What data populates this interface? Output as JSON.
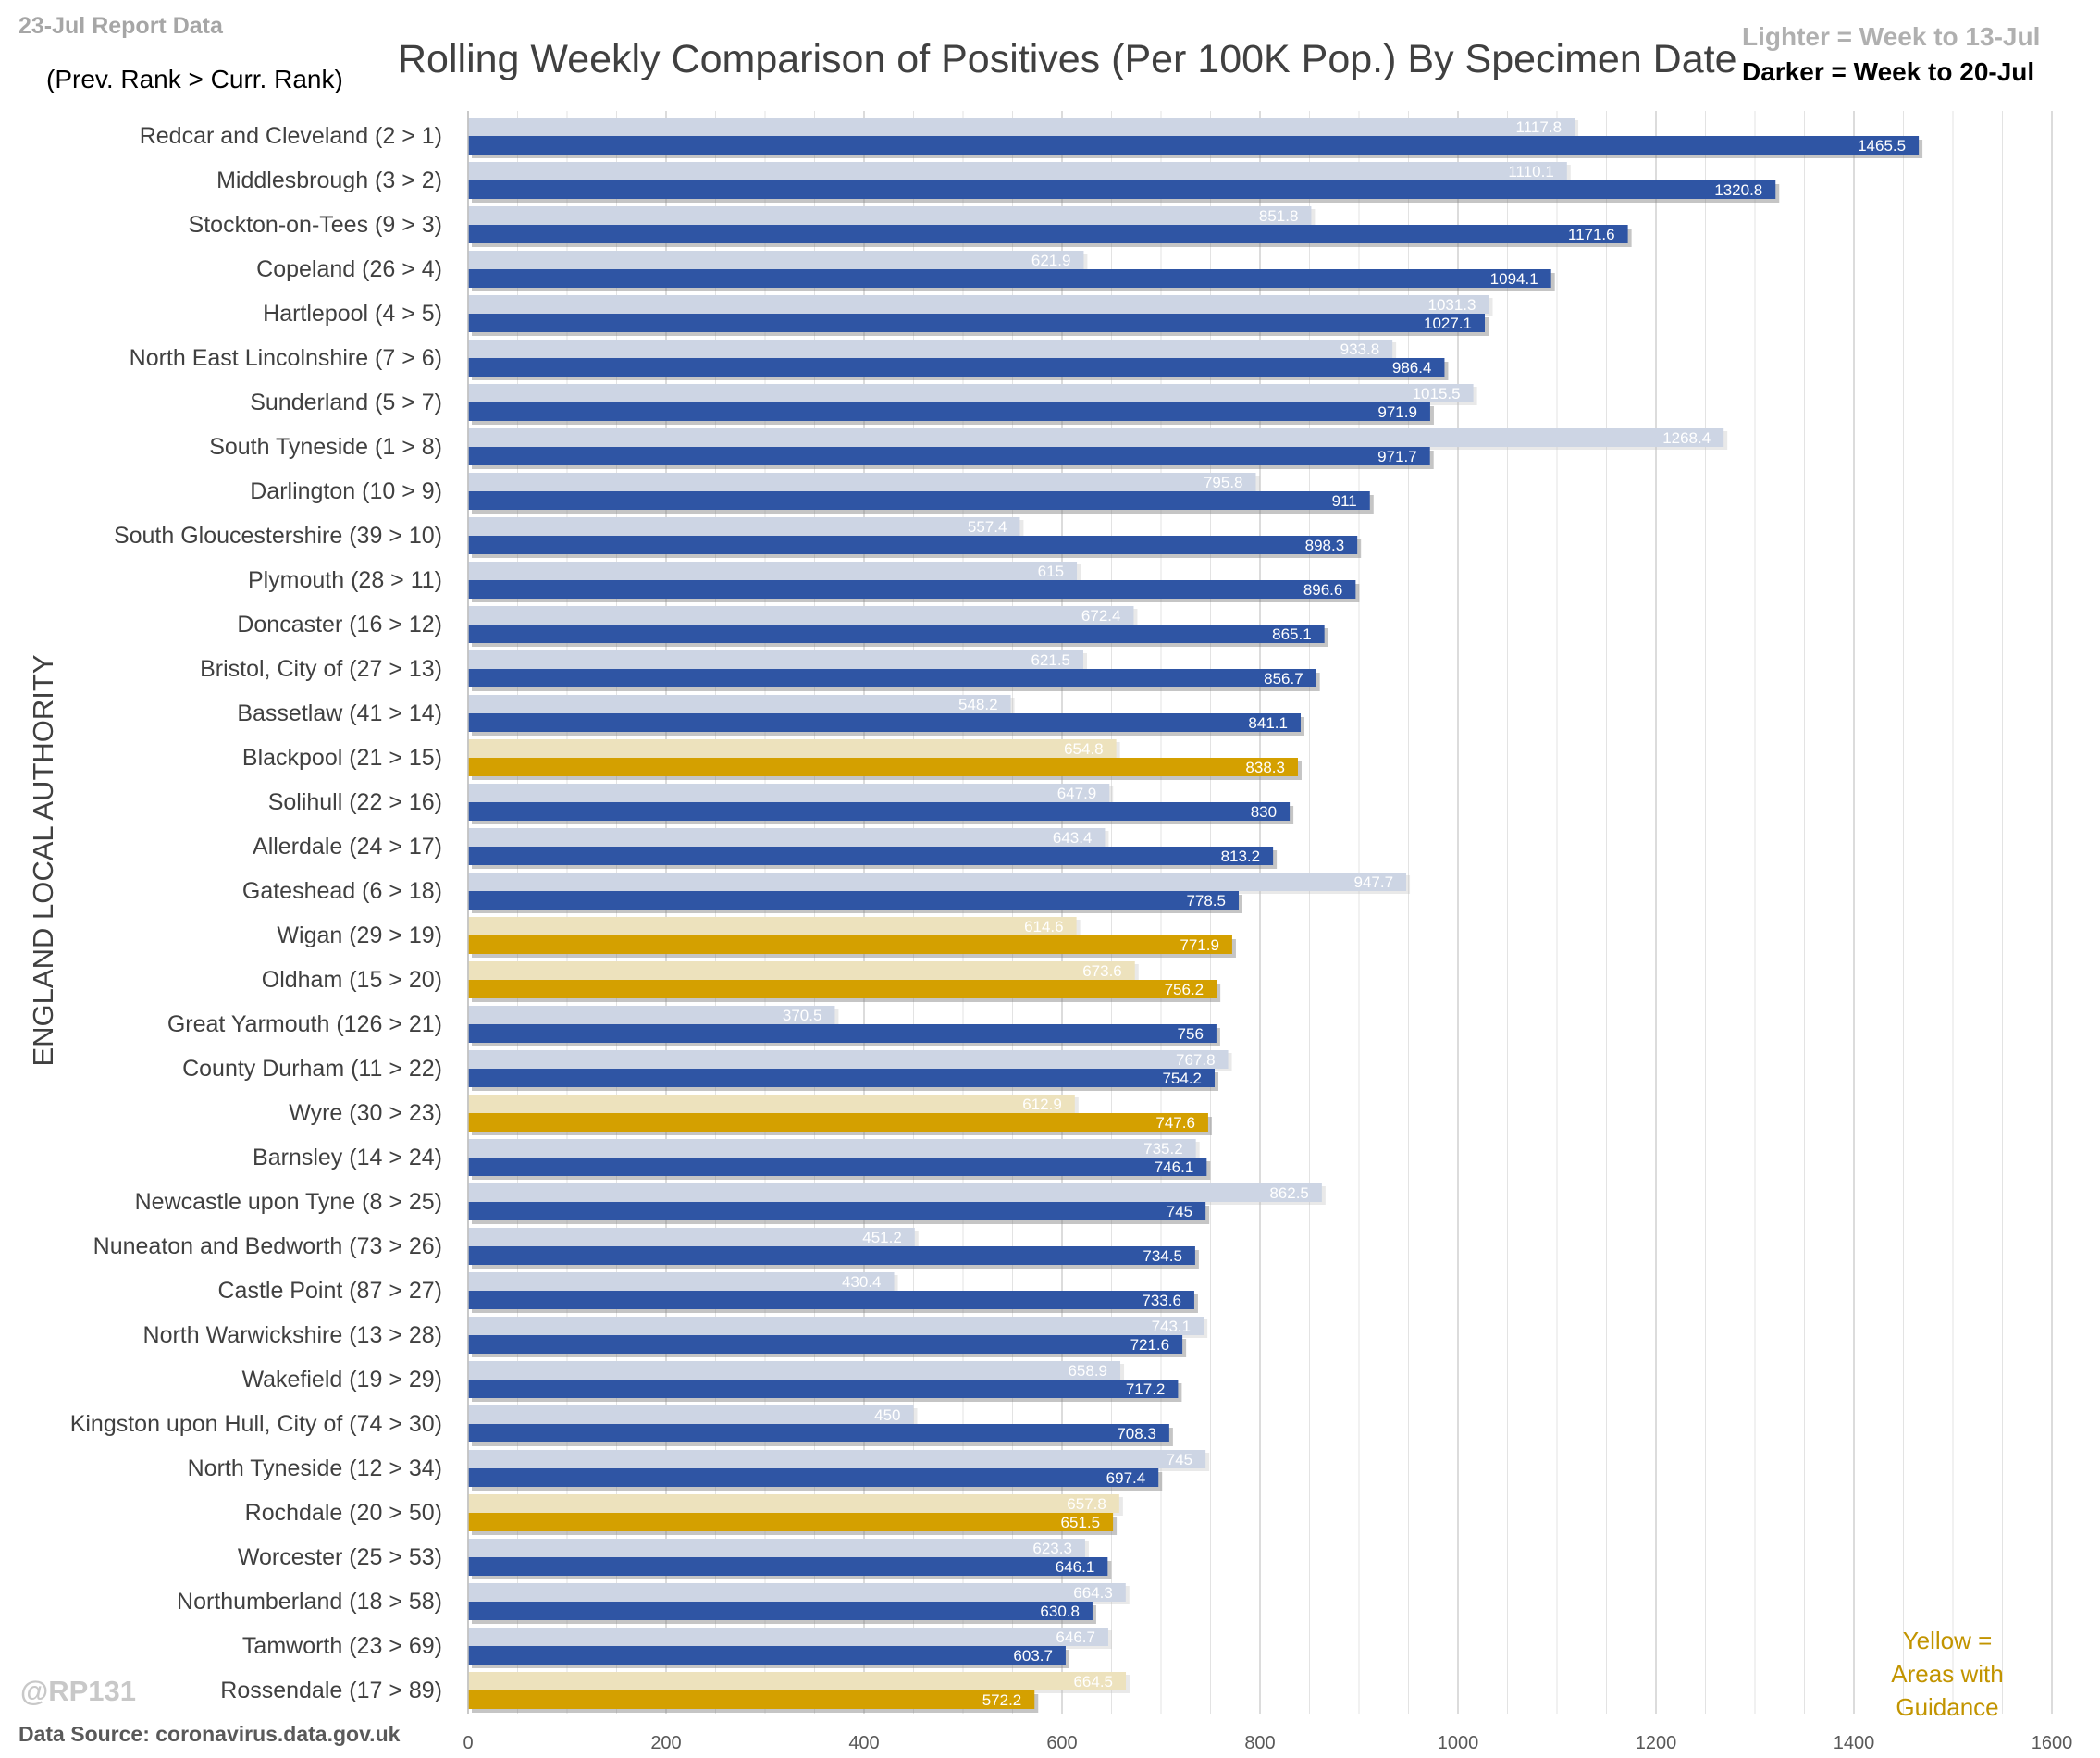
{
  "header": {
    "report_date": "23-Jul Report Data",
    "rank_note": "(Prev. Rank > Curr. Rank)",
    "legend_lighter": "Lighter =  Week to 13-Jul",
    "legend_darker": "Darker =  Week to 20-Jul"
  },
  "footer": {
    "handle": "@RP131",
    "source": "Data Source: coronavirus.data.gov.uk",
    "yellow_note": "Yellow = Areas with Guidance"
  },
  "colors": {
    "blue_dark": "#2f55a4",
    "blue_light": "#cdd5e4",
    "yellow_dark": "#d4a000",
    "yellow_light": "#ede2bd",
    "grid": "#e3e3e3"
  },
  "chart_data": {
    "type": "bar",
    "orientation": "horizontal",
    "title": "Rolling Weekly Comparison of Positives  (Per 100K Pop.) By Specimen Date",
    "xlabel": "",
    "ylabel": "ENGLAND LOCAL AUTHORITY",
    "xlim": [
      0,
      1600
    ],
    "xticks": [
      0,
      200,
      400,
      600,
      800,
      1000,
      1200,
      1400,
      1600
    ],
    "grid": true,
    "categories": [
      "Redcar and Cleveland (2 > 1)",
      "Middlesbrough (3 > 2)",
      "Stockton-on-Tees (9 > 3)",
      "Copeland (26 > 4)",
      "Hartlepool (4 > 5)",
      "North East Lincolnshire (7 > 6)",
      "Sunderland (5 > 7)",
      "South Tyneside (1 > 8)",
      "Darlington (10 > 9)",
      "South Gloucestershire (39 > 10)",
      "Plymouth (28 > 11)",
      "Doncaster (16 > 12)",
      "Bristol, City of (27 > 13)",
      "Bassetlaw (41 > 14)",
      "Blackpool (21 > 15)",
      "Solihull (22 > 16)",
      "Allerdale (24 > 17)",
      "Gateshead (6 > 18)",
      "Wigan (29 > 19)",
      "Oldham (15 > 20)",
      "Great Yarmouth (126 > 21)",
      "County Durham (11 > 22)",
      "Wyre (30 > 23)",
      "Barnsley (14 > 24)",
      "Newcastle upon Tyne (8 > 25)",
      "Nuneaton and Bedworth (73 > 26)",
      "Castle Point (87 > 27)",
      "North Warwickshire (13 > 28)",
      "Wakefield (19 > 29)",
      "Kingston upon Hull, City of (74 > 30)",
      "North Tyneside (12 > 34)",
      "Rochdale (20 > 50)",
      "Worcester (25 > 53)",
      "Northumberland (18 > 58)",
      "Tamworth (23 > 69)",
      "Rossendale (17 > 89)"
    ],
    "series": [
      {
        "name": "Week to 13-Jul",
        "values": [
          1117.8,
          1110.1,
          851.8,
          621.9,
          1031.3,
          933.8,
          1015.5,
          1268.4,
          795.8,
          557.4,
          615,
          672.4,
          621.5,
          548.2,
          654.8,
          647.9,
          643.4,
          947.7,
          614.6,
          673.6,
          370.5,
          767.8,
          612.9,
          735.2,
          862.5,
          451.2,
          430.4,
          743.1,
          658.9,
          450,
          745,
          657.8,
          623.3,
          664.3,
          646.7,
          664.5
        ]
      },
      {
        "name": "Week to 20-Jul",
        "values": [
          1465.5,
          1320.8,
          1171.6,
          1094.1,
          1027.1,
          986.4,
          971.9,
          971.7,
          911,
          898.3,
          896.6,
          865.1,
          856.7,
          841.1,
          838.3,
          830,
          813.2,
          778.5,
          771.9,
          756.2,
          756,
          754.2,
          747.6,
          746.1,
          745,
          734.5,
          733.6,
          721.6,
          717.2,
          708.3,
          697.4,
          651.5,
          646.1,
          630.8,
          603.7,
          572.2
        ]
      }
    ],
    "guidance_areas": [
      "Blackpool (21 > 15)",
      "Wigan (29 > 19)",
      "Oldham (15 > 20)",
      "Wyre (30 > 23)",
      "Rochdale (20 > 50)",
      "Rossendale (17 > 89)"
    ]
  }
}
